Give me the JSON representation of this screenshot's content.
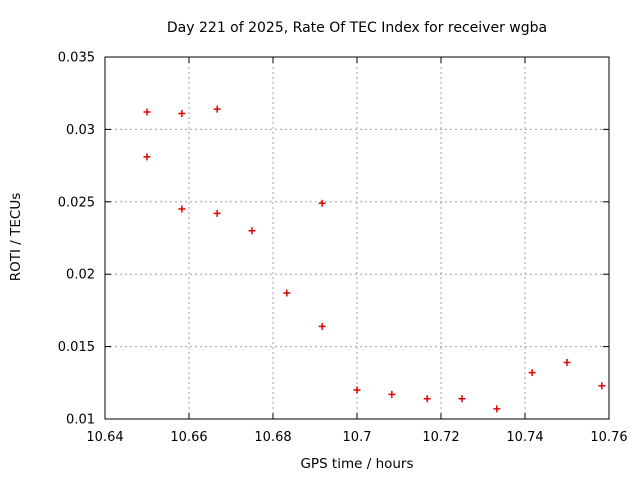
{
  "chart_data": {
    "type": "scatter",
    "title": "Day 221 of 2025, Rate Of TEC Index for receiver wgba",
    "xlabel": "GPS time / hours",
    "ylabel": "ROTI / TECUs",
    "xlim": [
      10.64,
      10.76
    ],
    "ylim": [
      0.01,
      0.035
    ],
    "xticks": {
      "values": [
        10.64,
        10.66,
        10.68,
        10.7,
        10.72,
        10.74,
        10.76
      ],
      "labels": [
        "10.64",
        "10.66",
        "10.68",
        "10.7",
        "10.72",
        "10.74",
        "10.76"
      ]
    },
    "yticks": {
      "values": [
        0.01,
        0.015,
        0.02,
        0.025,
        0.03,
        0.035
      ],
      "labels": [
        "0.01",
        "0.015",
        "0.02",
        "0.025",
        "0.03",
        "0.035"
      ]
    },
    "grid": true,
    "grid_style": "dotted",
    "legend": "none",
    "marker": {
      "shape": "plus",
      "color": "#e00000",
      "size": 7
    },
    "series": [
      {
        "name": "ROTI",
        "points": [
          [
            10.65,
            0.0312
          ],
          [
            10.65,
            0.0281
          ],
          [
            10.6583,
            0.0311
          ],
          [
            10.6583,
            0.0245
          ],
          [
            10.6667,
            0.0314
          ],
          [
            10.6667,
            0.0242
          ],
          [
            10.675,
            0.023
          ],
          [
            10.6833,
            0.0187
          ],
          [
            10.6917,
            0.0249
          ],
          [
            10.6917,
            0.0164
          ],
          [
            10.7,
            0.012
          ],
          [
            10.7083,
            0.0117
          ],
          [
            10.7167,
            0.0114
          ],
          [
            10.725,
            0.0114
          ],
          [
            10.7333,
            0.0107
          ],
          [
            10.7417,
            0.0132
          ],
          [
            10.75,
            0.0139
          ],
          [
            10.7583,
            0.0123
          ]
        ]
      }
    ],
    "colors": {
      "background": "#ffffff",
      "border": "#000000",
      "grid": "#a0a0a0",
      "text": "#000000",
      "marker": "#e00000"
    }
  }
}
